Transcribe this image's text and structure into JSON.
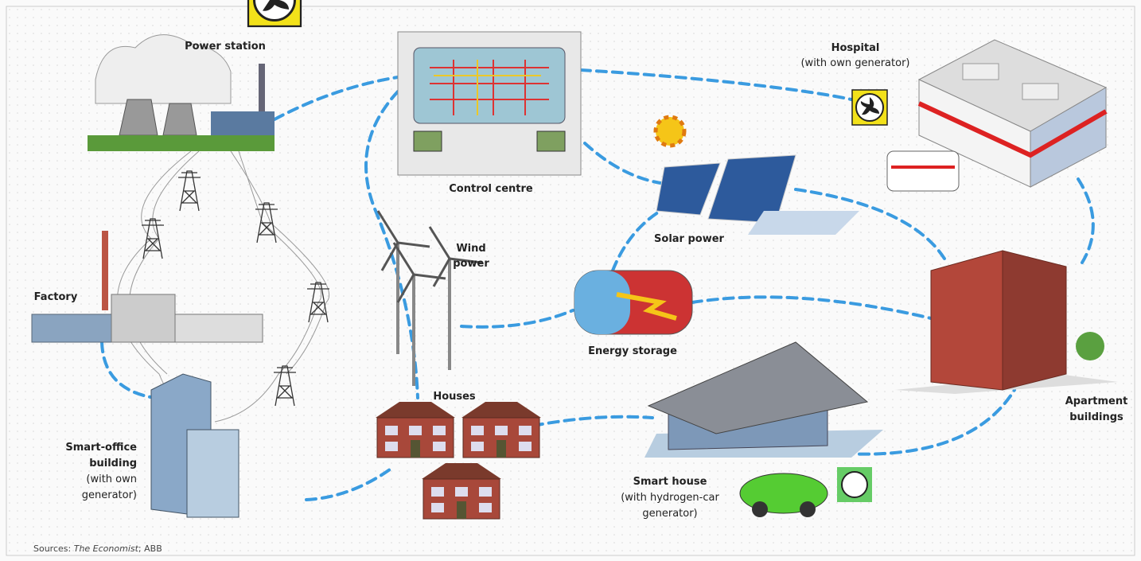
{
  "nodes": [
    {
      "label_lines": [
        "Power station"
      ]
    },
    {
      "label_lines": [
        "Control centre"
      ]
    },
    {
      "label_lines": [
        "Hospital",
        "(with own generator)"
      ]
    },
    {
      "label_lines": [
        "Factory"
      ]
    },
    {
      "label_lines": [
        "Wind",
        "power"
      ]
    },
    {
      "label_lines": [
        "Solar power"
      ]
    },
    {
      "label_lines": [
        "Energy storage"
      ]
    },
    {
      "label_lines": [
        "Apartment",
        "buildings"
      ]
    },
    {
      "label_lines": [
        "Houses"
      ]
    },
    {
      "label_lines": [
        "Smart-office",
        "building",
        "(with own",
        "generator)"
      ]
    },
    {
      "label_lines": [
        "Smart house",
        "(with hydrogen-car",
        "generator)"
      ]
    }
  ],
  "source": {
    "parts": [
      "Sources: ",
      "The Economist",
      "; ABB"
    ]
  }
}
